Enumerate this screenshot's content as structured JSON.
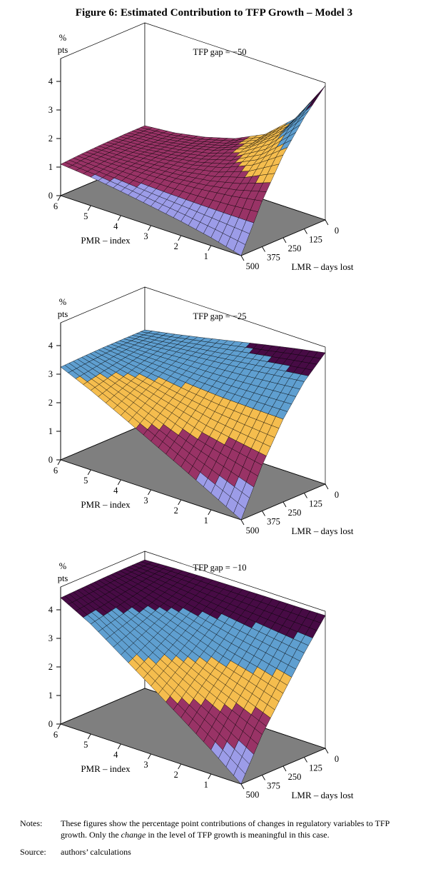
{
  "page": {
    "title": "Figure 6: Estimated Contribution to TFP Growth – Model 3"
  },
  "chart_data": {
    "type": "surface",
    "common": {
      "x_axis": {
        "title": "PMR – index",
        "ticks": [
          6,
          5,
          4,
          3,
          2,
          1
        ],
        "range": [
          0,
          6
        ]
      },
      "y_axis": {
        "title": "LMR – days lost",
        "ticks": [
          0,
          125,
          250,
          375,
          500
        ],
        "range": [
          0,
          500
        ]
      },
      "z_axis": {
        "unit_line1": "%",
        "unit_line2": "pts",
        "ticks": [
          0,
          1,
          2,
          3,
          4
        ],
        "range": [
          0,
          5
        ]
      },
      "bands": [
        {
          "range": "0–1",
          "color": "#9C9CE8"
        },
        {
          "range": "1–2",
          "color": "#993366"
        },
        {
          "range": "2–3",
          "color": "#F5BD4E"
        },
        {
          "range": "3–4",
          "color": "#5F9FD0"
        },
        {
          "range": "4–5",
          "color": "#470B45"
        }
      ],
      "floor_color": "#7F7F7F",
      "grid_on": true,
      "legend": "none"
    },
    "panels": [
      {
        "label": "TFP gap = −50",
        "pmr_values": [
          6,
          5,
          4,
          3,
          2,
          1,
          0
        ],
        "lmr_values": [
          0,
          125,
          250,
          375,
          500
        ],
        "z_grid": [
          [
            1.2,
            1.2,
            1.18,
            1.15,
            1.1
          ],
          [
            1.3,
            1.28,
            1.24,
            1.15,
            1.0
          ],
          [
            1.5,
            1.45,
            1.35,
            1.18,
            0.85
          ],
          [
            1.8,
            1.7,
            1.5,
            1.22,
            0.68
          ],
          [
            2.3,
            2.1,
            1.75,
            1.3,
            0.5
          ],
          [
            3.2,
            2.8,
            2.2,
            1.42,
            0.28
          ],
          [
            4.7,
            3.9,
            2.9,
            1.6,
            0.0
          ]
        ]
      },
      {
        "label": "TFP gap = −25",
        "pmr_values": [
          6,
          5,
          4,
          3,
          2,
          1,
          0
        ],
        "lmr_values": [
          0,
          125,
          250,
          375,
          500
        ],
        "z_grid": [
          [
            3.3,
            3.3,
            3.3,
            3.28,
            3.25
          ],
          [
            3.5,
            3.38,
            3.2,
            3.0,
            2.78
          ],
          [
            3.72,
            3.48,
            3.12,
            2.7,
            2.25
          ],
          [
            3.95,
            3.56,
            3.02,
            2.38,
            1.7
          ],
          [
            4.18,
            3.66,
            2.95,
            2.05,
            1.15
          ],
          [
            4.4,
            3.78,
            2.92,
            1.82,
            0.58
          ],
          [
            4.6,
            3.9,
            2.9,
            1.6,
            0.0
          ]
        ]
      },
      {
        "label": "TFP gap = −10",
        "pmr_values": [
          6,
          5,
          4,
          3,
          2,
          1,
          0
        ],
        "lmr_values": [
          0,
          125,
          250,
          375,
          500
        ],
        "z_grid": [
          [
            4.5,
            4.5,
            4.48,
            4.45,
            4.42
          ],
          [
            4.55,
            4.38,
            4.2,
            4.02,
            3.85
          ],
          [
            4.58,
            4.25,
            3.88,
            3.5,
            3.12
          ],
          [
            4.6,
            4.1,
            3.52,
            2.95,
            2.38
          ],
          [
            4.62,
            3.95,
            3.15,
            2.42,
            1.62
          ],
          [
            4.63,
            3.8,
            2.88,
            1.92,
            0.85
          ],
          [
            4.65,
            3.65,
            2.55,
            1.42,
            0.0
          ]
        ]
      }
    ]
  },
  "notes": {
    "label": "Notes:",
    "body_1": "These figures show the percentage point contributions of changes in regulatory variables to TFP growth. Only the ",
    "body_italic": "change",
    "body_2": " in the level of TFP growth is meaningful in this case.",
    "source_label": "Source:",
    "source_text": "authors’ calculations"
  }
}
